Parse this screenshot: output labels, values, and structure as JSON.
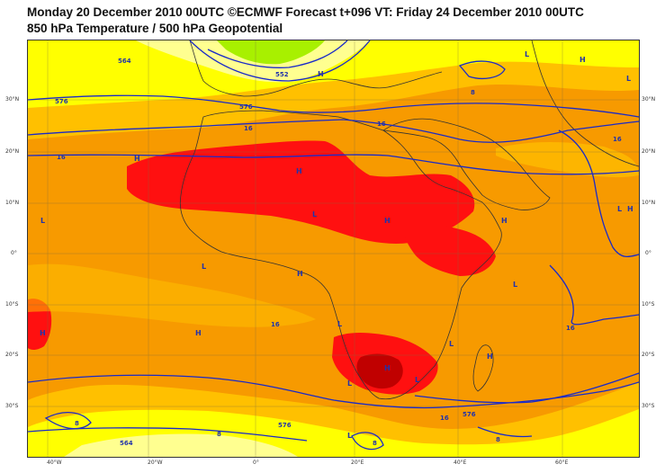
{
  "header": {
    "line1": "Monday 20 December 2010 00UTC ©ECMWF Forecast t+096 VT: Friday 24 December 2010 00UTC",
    "line2": "850 hPa Temperature / 500 hPa Geopotential"
  },
  "axes": {
    "lon_labels": [
      "40°W",
      "20°W",
      "0°",
      "20°E",
      "40°E",
      "60°E"
    ],
    "lat_labels": [
      "30°N",
      "20°N",
      "10°N",
      "0°",
      "10°S",
      "20°S",
      "30°S"
    ]
  },
  "contour_labels": [
    "564",
    "552",
    "576",
    "576",
    "16",
    "16",
    "16",
    "16",
    "8",
    "16",
    "16",
    "576",
    "576",
    "564",
    "8",
    "8",
    "8",
    "8",
    "16"
  ],
  "pressure_centers": [
    "H",
    "L",
    "L",
    "H",
    "H",
    "L",
    "H",
    "L",
    "H",
    "H",
    "L",
    "H",
    "L",
    "H",
    "L",
    "H",
    "L",
    "H",
    "L",
    "L",
    "H",
    "L",
    "H",
    "L"
  ],
  "colors": {
    "hot_red": "#ff1010",
    "dark_red": "#c00000",
    "orange": "#f79a00",
    "light_orange": "#ffc000",
    "yellow": "#ffff00",
    "pale_yellow": "#ffff90",
    "green": "#a8f000",
    "contour_blue": "#1a2ac8",
    "coast": "#333333"
  }
}
